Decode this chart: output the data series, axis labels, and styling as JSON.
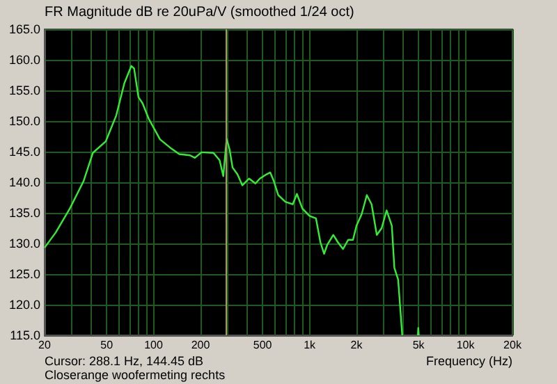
{
  "chart_data": {
    "type": "line",
    "title": "FR Magnitude dB re 20uPa/V (smoothed 1/24 oct)",
    "xlabel": "Frequency (Hz)",
    "annotations": [
      "Cursor: 288.1 Hz, 144.45 dB",
      "Closerange woofermeting rechts"
    ],
    "series": [
      {
        "color": "#33ee33",
        "x": [
          20,
          23.6,
          28.9,
          35.6,
          40.8,
          49.4,
          57.6,
          65,
          72,
          75,
          80,
          85,
          93,
          110,
          130,
          146,
          171,
          184,
          203,
          242,
          265,
          280,
          294,
          307,
          321,
          345,
          371,
          410,
          450,
          480,
          530,
          560,
          590,
          630,
          700,
          780,
          830,
          900,
          1000,
          1100,
          1174,
          1240,
          1300,
          1420,
          1520,
          1640,
          1770,
          1900,
          2000,
          2160,
          2330,
          2500,
          2700,
          2900,
          3120,
          3370,
          3500,
          3700,
          3930,
          4400,
          4950,
          4980,
          5020
        ],
        "values": [
          129.3,
          131.8,
          135.6,
          140.2,
          144.8,
          146.7,
          150.9,
          156.2,
          159,
          158.6,
          153.9,
          152.9,
          150.4,
          147,
          145.5,
          144.6,
          144.4,
          144,
          144.9,
          144.8,
          143.6,
          141,
          147.1,
          145.4,
          142.4,
          141.3,
          139.5,
          140.6,
          139.8,
          140.6,
          141.3,
          141.6,
          140.2,
          137.9,
          136.8,
          136.4,
          138.1,
          135.7,
          134.5,
          134.1,
          130.2,
          128.3,
          129.8,
          131.4,
          130.2,
          129.1,
          130.6,
          130.6,
          132.9,
          134.8,
          137.9,
          136.4,
          131.4,
          132.5,
          135.4,
          132.9,
          126,
          124.1,
          115,
          null,
          115,
          116.2,
          115
        ]
      }
    ],
    "log": "x",
    "xlim": [
      20,
      20000
    ],
    "ylim": [
      115,
      165
    ],
    "xticks": [
      20,
      {
        "value": 30,
        "label": null
      },
      {
        "value": 40,
        "label": null
      },
      50,
      {
        "value": 60,
        "label": null
      },
      {
        "value": 70,
        "label": null
      },
      {
        "value": 80,
        "label": null
      },
      {
        "value": 90,
        "label": null
      },
      100,
      200,
      {
        "value": 300,
        "label": null
      },
      {
        "value": 400,
        "label": null
      },
      500,
      {
        "value": 600,
        "label": null
      },
      {
        "value": 700,
        "label": null
      },
      {
        "value": 800,
        "label": null
      },
      {
        "value": 900,
        "label": null
      },
      {
        "value": 1000,
        "label": "1k"
      },
      {
        "value": 2000,
        "label": "2k"
      },
      {
        "value": 3000,
        "label": null
      },
      {
        "value": 4000,
        "label": null
      },
      {
        "value": 5000,
        "label": "5k"
      },
      {
        "value": 6000,
        "label": null
      },
      {
        "value": 7000,
        "label": null
      },
      {
        "value": 8000,
        "label": null
      },
      {
        "value": 9000,
        "label": null
      },
      {
        "value": 10000,
        "label": "10k"
      },
      {
        "value": 20000,
        "label": "20k"
      }
    ],
    "yticks": [
      {
        "value": 115,
        "label": "115.0"
      },
      {
        "value": 120,
        "label": "120.0"
      },
      {
        "value": 125,
        "label": "125.0"
      },
      {
        "value": 130,
        "label": "130.0"
      },
      {
        "value": 135,
        "label": "135.0"
      },
      {
        "value": 140,
        "label": "140.0"
      },
      {
        "value": 145,
        "label": "145.0"
      },
      {
        "value": 150,
        "label": "150.0"
      },
      {
        "value": 155,
        "label": "155.0"
      },
      {
        "value": 160,
        "label": "160.0"
      },
      {
        "value": 165,
        "label": "165.0"
      }
    ],
    "grid": true,
    "marker": "none",
    "line_style": "solid",
    "ref_lines": [
      {
        "axis": "x",
        "value": 288.1,
        "color": "#a89868"
      }
    ]
  }
}
